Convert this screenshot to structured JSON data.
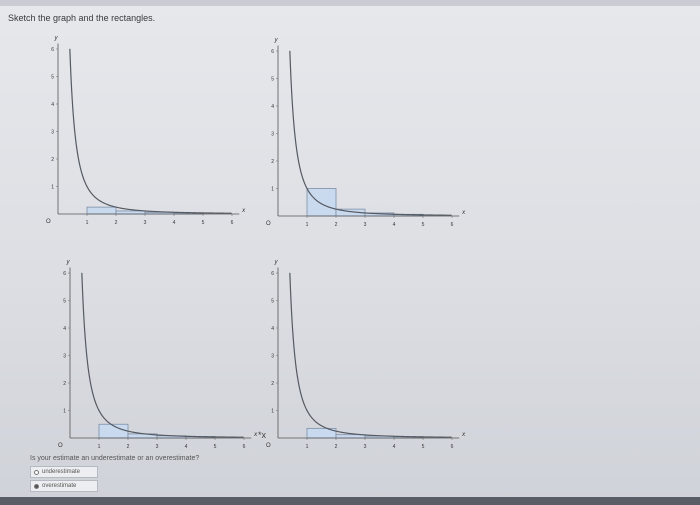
{
  "instruction": "Sketch the graph and the rectangles.",
  "question": "Is your estimate an underestimate or an overestimate?",
  "options": [
    {
      "label": "underestimate",
      "selected": false
    },
    {
      "label": "overestimate",
      "selected": true
    }
  ],
  "side_marker": "*x",
  "accent_colors": {
    "curve": "#555a63",
    "rect_fill": "#c9d9ee",
    "rect_stroke": "#7d8fa8"
  },
  "chart_data": [
    {
      "type": "line",
      "function": "y = 1/x^2",
      "xlabel": "x",
      "ylabel": "y",
      "origin_label": "O",
      "xlim": [
        0,
        6
      ],
      "ylim": [
        0,
        6
      ],
      "xticks": [
        "1",
        "2",
        "3",
        "4",
        "5",
        "6"
      ],
      "yticks": [
        "1",
        "2",
        "3",
        "4",
        "5",
        "6"
      ],
      "rectangles": [
        {
          "x0": 1,
          "x1": 2,
          "height": 0.25
        },
        {
          "x0": 2,
          "x1": 3,
          "height": 0.111
        },
        {
          "x0": 3,
          "x1": 4,
          "height": 0.0625
        },
        {
          "x0": 4,
          "x1": 5,
          "height": 0.04
        }
      ]
    },
    {
      "type": "line",
      "function": "y = 1/x^2",
      "xlabel": "x",
      "ylabel": "y",
      "origin_label": "O",
      "xlim": [
        0,
        6
      ],
      "ylim": [
        0,
        6
      ],
      "xticks": [
        "1",
        "2",
        "3",
        "4",
        "5",
        "6"
      ],
      "yticks": [
        "1",
        "2",
        "3",
        "4",
        "5",
        "6"
      ],
      "rectangles": [
        {
          "x0": 1,
          "x1": 2,
          "height": 1
        },
        {
          "x0": 2,
          "x1": 3,
          "height": 0.25
        },
        {
          "x0": 3,
          "x1": 4,
          "height": 0.111
        },
        {
          "x0": 4,
          "x1": 5,
          "height": 0.0625
        }
      ]
    },
    {
      "type": "line",
      "function": "y = 1/x^2",
      "xlabel": "x",
      "ylabel": "y",
      "origin_label": "O",
      "xlim": [
        0,
        6
      ],
      "ylim": [
        0,
        6
      ],
      "xticks": [
        "1",
        "2",
        "3",
        "4",
        "5",
        "6"
      ],
      "yticks": [
        "1",
        "2",
        "3",
        "4",
        "5",
        "6"
      ],
      "rectangles": [
        {
          "x0": 1,
          "x1": 2,
          "height": 0.5
        },
        {
          "x0": 2,
          "x1": 3,
          "height": 0.15
        },
        {
          "x0": 3,
          "x1": 4,
          "height": 0.08
        },
        {
          "x0": 4,
          "x1": 5,
          "height": 0.05
        }
      ]
    },
    {
      "type": "line",
      "function": "y = 1/x^2",
      "xlabel": "x",
      "ylabel": "y",
      "origin_label": "O",
      "xlim": [
        0,
        6
      ],
      "ylim": [
        0,
        6
      ],
      "xticks": [
        "1",
        "2",
        "3",
        "4",
        "5",
        "6"
      ],
      "yticks": [
        "1",
        "2",
        "3",
        "4",
        "5",
        "6"
      ],
      "rectangles": [
        {
          "x0": 1,
          "x1": 2,
          "height": 0.35
        },
        {
          "x0": 2,
          "x1": 3,
          "height": 0.12
        },
        {
          "x0": 3,
          "x1": 4,
          "height": 0.07
        },
        {
          "x0": 4,
          "x1": 5,
          "height": 0.045
        }
      ]
    }
  ]
}
